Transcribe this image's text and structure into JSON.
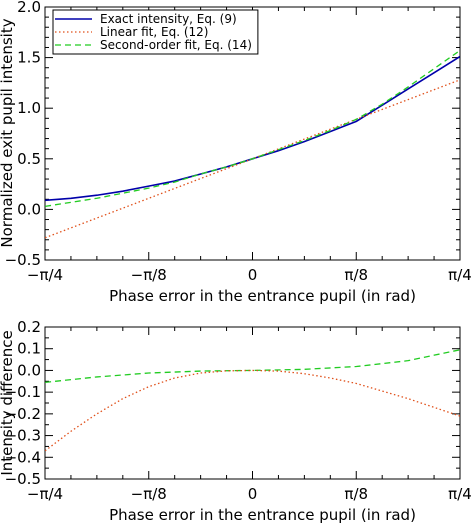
{
  "colors": {
    "exact": "#0000aa",
    "linear": "#e0501a",
    "second": "#22cc22",
    "axis": "#000000"
  },
  "chart_data": [
    {
      "type": "line",
      "xlabel": "Phase error in the entrance pupil (in rad)",
      "ylabel": "Normalized exit pupil intensity",
      "xlim": [
        -0.7853981634,
        0.7853981634
      ],
      "ylim": [
        -0.5,
        2.0
      ],
      "xticks": [
        -0.7853981634,
        -0.3926990817,
        0,
        0.3926990817,
        0.7853981634
      ],
      "xtick_labels": [
        "−π/4",
        "−π/8",
        "0",
        "π/8",
        "π/4"
      ],
      "yticks": [
        -0.5,
        0.0,
        0.5,
        1.0,
        1.5,
        2.0
      ],
      "ytick_labels": [
        "−0.5",
        "0.0",
        "0.5",
        "1.0",
        "1.5",
        "2.0"
      ],
      "legend_position": "top-left",
      "series": [
        {
          "name": "Exact intensity, Eq. (9)",
          "style": "solid",
          "color_key": "exact",
          "x": [
            -0.785,
            -0.687,
            -0.589,
            -0.491,
            -0.393,
            -0.295,
            -0.196,
            -0.098,
            0.0,
            0.098,
            0.196,
            0.295,
            0.393,
            0.491,
            0.589,
            0.687,
            0.785
          ],
          "y": [
            0.09,
            0.11,
            0.14,
            0.18,
            0.23,
            0.28,
            0.35,
            0.42,
            0.5,
            0.58,
            0.67,
            0.77,
            0.87,
            1.03,
            1.19,
            1.35,
            1.51
          ]
        },
        {
          "name": "Linear fit, Eq. (12)",
          "style": "dotted",
          "color_key": "linear",
          "x": [
            -0.785,
            0.785
          ],
          "y": [
            -0.28,
            1.28
          ]
        },
        {
          "name": "Second-order fit, Eq. (14)",
          "style": "dashed",
          "color_key": "second",
          "x": [
            -0.785,
            -0.687,
            -0.589,
            -0.491,
            -0.393,
            -0.295,
            -0.196,
            -0.098,
            0.0,
            0.098,
            0.196,
            0.295,
            0.393,
            0.491,
            0.589,
            0.687,
            0.785
          ],
          "y": [
            0.03,
            0.07,
            0.11,
            0.16,
            0.21,
            0.27,
            0.35,
            0.42,
            0.5,
            0.59,
            0.68,
            0.78,
            0.89,
            1.04,
            1.21,
            1.39,
            1.57
          ]
        }
      ]
    },
    {
      "type": "line",
      "xlabel": "Phase error in the entrance pupil (in rad)",
      "ylabel": "Intensity difference",
      "xlim": [
        -0.7853981634,
        0.7853981634
      ],
      "ylim": [
        -0.5,
        0.2
      ],
      "xticks": [
        -0.7853981634,
        -0.3926990817,
        0,
        0.3926990817,
        0.7853981634
      ],
      "xtick_labels": [
        "−π/4",
        "−π/8",
        "0",
        "π/8",
        "π/4"
      ],
      "yticks": [
        -0.5,
        -0.4,
        -0.3,
        -0.2,
        -0.1,
        0.0,
        0.1,
        0.2
      ],
      "ytick_labels": [
        "−0.5",
        "−0.4",
        "−0.3",
        "−0.2",
        "−0.1",
        "0.0",
        "0.1",
        "0.2"
      ],
      "series": [
        {
          "style": "dashed",
          "color_key": "second",
          "x": [
            -0.785,
            -0.589,
            -0.393,
            -0.196,
            0.0,
            0.196,
            0.393,
            0.589,
            0.785
          ],
          "y": [
            -0.055,
            -0.03,
            -0.012,
            -0.003,
            0.0,
            0.005,
            0.018,
            0.045,
            0.095
          ]
        },
        {
          "style": "dotted",
          "color_key": "linear",
          "x": [
            -0.785,
            -0.687,
            -0.589,
            -0.491,
            -0.393,
            -0.295,
            -0.196,
            -0.098,
            0.0,
            0.098,
            0.196,
            0.295,
            0.393,
            0.491,
            0.589,
            0.687,
            0.785
          ],
          "y": [
            -0.37,
            -0.28,
            -0.2,
            -0.13,
            -0.075,
            -0.035,
            -0.012,
            -0.002,
            0.0,
            -0.003,
            -0.015,
            -0.035,
            -0.06,
            -0.095,
            -0.13,
            -0.17,
            -0.21
          ]
        }
      ]
    }
  ]
}
